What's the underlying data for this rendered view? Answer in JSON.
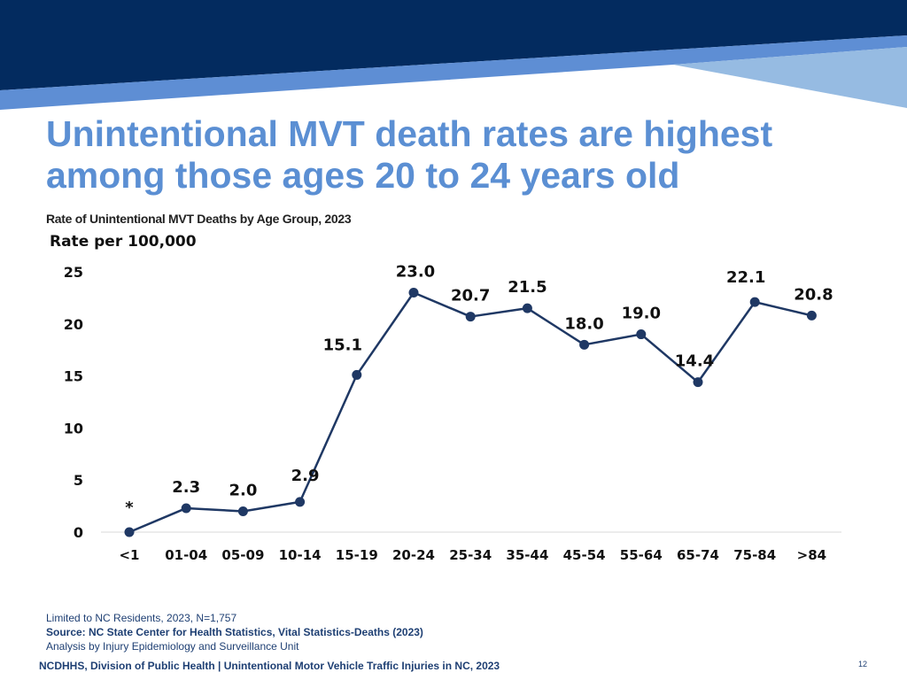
{
  "slide": {
    "title": "Unintentional MVT death rates are highest among those ages 20 to 24 years old",
    "page_number": "12"
  },
  "colors": {
    "banner_dark": "#032b5f",
    "banner_mid": "#5e8ed4",
    "banner_light": "#96bbe2",
    "title": "#5b8fd3",
    "series_line": "#1f3864",
    "series_marker": "#1f3864"
  },
  "chart_data": {
    "type": "line",
    "title": "Rate of Unintentional MVT Deaths by Age Group, 2023",
    "ylabel": "Rate per 100,000",
    "xlabel": "",
    "ylim": [
      0,
      25
    ],
    "y_ticks": [
      "0",
      "5",
      "10",
      "15",
      "20",
      "25"
    ],
    "grid": false,
    "categories": [
      "<1",
      "01-04",
      "05-09",
      "10-14",
      "15-19",
      "20-24",
      "25-34",
      "35-44",
      "45-54",
      "55-64",
      "65-74",
      "75-84",
      ">84"
    ],
    "series": [
      {
        "values": [
          0,
          2.3,
          2.0,
          2.9,
          15.1,
          23.0,
          20.7,
          21.5,
          18.0,
          19.0,
          14.4,
          22.1,
          20.8
        ],
        "labels": [
          "*",
          "2.3",
          "2.0",
          "2.9",
          "15.1",
          "23.0",
          "20.7",
          "21.5",
          "18.0",
          "19.0",
          "14.4",
          "22.1",
          "20.8"
        ]
      }
    ]
  },
  "notes": {
    "line1": "Limited to NC Residents, 2023, N=1,757",
    "line2": "Source: NC State Center for Health Statistics, Vital Statistics-Deaths (2023)",
    "line3": "Analysis by Injury Epidemiology and Surveillance Unit"
  },
  "footer": {
    "text": "NCDHHS, Division of Public Health | Unintentional Motor Vehicle Traffic Injuries in NC, 2023"
  }
}
